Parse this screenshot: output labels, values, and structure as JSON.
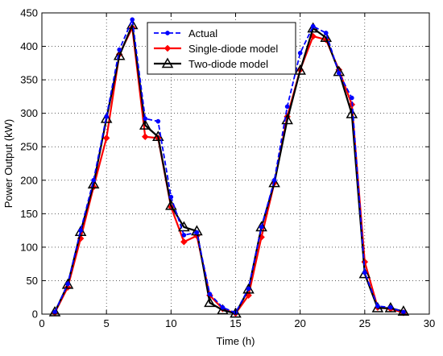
{
  "chart_data": {
    "type": "line",
    "title": "",
    "xlabel": "Time (h)",
    "ylabel": "Power Output (kW)",
    "xlim": [
      0,
      30
    ],
    "ylim": [
      0,
      450
    ],
    "xticks": [
      0,
      5,
      10,
      15,
      20,
      25,
      30
    ],
    "yticks": [
      0,
      50,
      100,
      150,
      200,
      250,
      300,
      350,
      400,
      450
    ],
    "grid": true,
    "legend_position": "top-center",
    "x": [
      1,
      2,
      3,
      4,
      5,
      6,
      7,
      8,
      9,
      10,
      11,
      12,
      13,
      14,
      15,
      16,
      17,
      18,
      19,
      20,
      21,
      22,
      23,
      24,
      25,
      26,
      27,
      28
    ],
    "series": [
      {
        "name": "Actual",
        "color": "#0000ff",
        "line_style": "dashed",
        "marker": "dot",
        "values": [
          3,
          45,
          125,
          200,
          295,
          395,
          440,
          292,
          288,
          175,
          118,
          122,
          30,
          10,
          2,
          38,
          130,
          200,
          310,
          390,
          430,
          420,
          360,
          323,
          62,
          12,
          10,
          3
        ]
      },
      {
        "name": "Single-diode model",
        "color": "#ff0000",
        "line_style": "solid",
        "marker": "diamond",
        "values": [
          2,
          40,
          113,
          190,
          263,
          388,
          428,
          265,
          263,
          160,
          108,
          117,
          28,
          8,
          1,
          28,
          115,
          196,
          295,
          365,
          415,
          410,
          365,
          313,
          78,
          10,
          8,
          2
        ]
      },
      {
        "name": "Two-diode model",
        "color": "#000000",
        "line_style": "solid",
        "marker": "triangle",
        "values": [
          3,
          44,
          123,
          194,
          292,
          386,
          432,
          282,
          265,
          162,
          130,
          124,
          17,
          6,
          1,
          37,
          130,
          196,
          290,
          364,
          427,
          413,
          362,
          299,
          60,
          9,
          9,
          4
        ]
      }
    ]
  }
}
